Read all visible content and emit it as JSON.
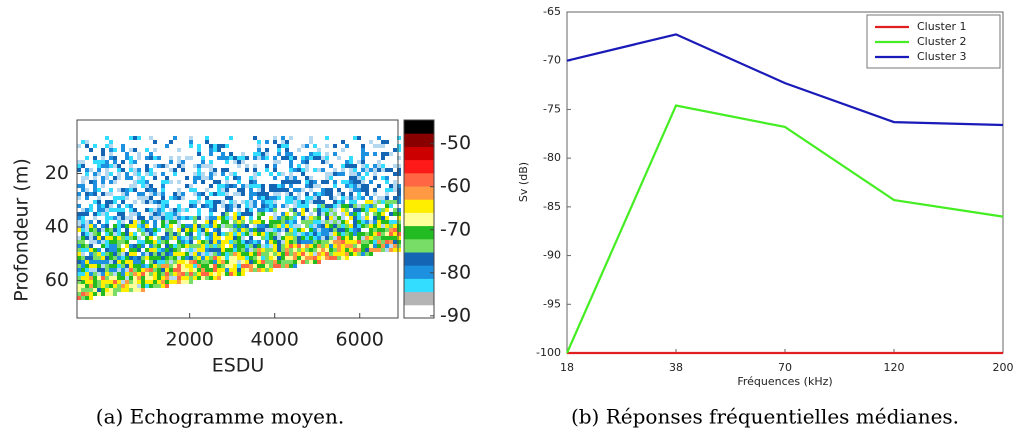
{
  "chart_data": [
    {
      "type": "echogram",
      "caption": "(a) Echogramme moyen.",
      "xlabel": "ESDU",
      "ylabel": "Profondeur (m)",
      "xlim": [
        -650,
        6900
      ],
      "xticks": [
        2000,
        4000,
        6000
      ],
      "ylim": [
        74,
        0
      ],
      "yticks": [
        20,
        40,
        60
      ],
      "colorbar": {
        "lim": [
          -90.5,
          -44.5
        ],
        "ticks": [
          -50,
          -60,
          -70,
          -80,
          -90
        ],
        "colors": [
          "#ffffff",
          "#b4b4b4",
          "#33ddff",
          "#1e90e0",
          "#1565b5",
          "#77dd66",
          "#22bb22",
          "#ffff99",
          "#ffee00",
          "#ff9944",
          "#ff6644",
          "#ff1a1a",
          "#cc0000",
          "#880000",
          "#000000"
        ]
      }
    },
    {
      "type": "line",
      "caption": "(b) Réponses fréquentielles médianes.",
      "xlabel": "Fréquences (kHz)",
      "ylabel": "Sv (dB)",
      "categories": [
        "18",
        "38",
        "70",
        "120",
        "200"
      ],
      "ylim": [
        -100,
        -65
      ],
      "yticks": [
        -100,
        -95,
        -90,
        -85,
        -80,
        -75,
        -70,
        -65
      ],
      "legend": "top-right",
      "series": [
        {
          "name": "Cluster 1",
          "color": "#e02020",
          "values": [
            -100,
            -100,
            -100,
            -100,
            -100
          ]
        },
        {
          "name": "Cluster 2",
          "color": "#44ee22",
          "values": [
            -100,
            -74.6,
            -76.8,
            -84.3,
            -86
          ]
        },
        {
          "name": "Cluster 3",
          "color": "#1a1ab8",
          "values": [
            -70,
            -67.3,
            -72.3,
            -76.3,
            -76.6
          ]
        }
      ]
    }
  ]
}
